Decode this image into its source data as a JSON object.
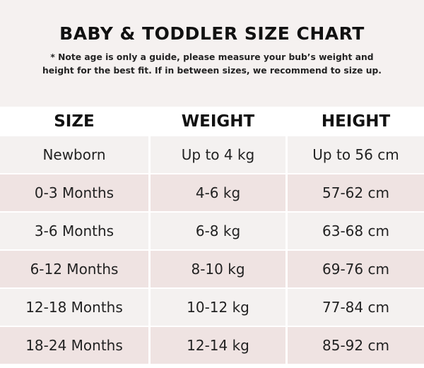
{
  "title": "BABY & TODDLER SIZE CHART",
  "note_line1": "* Note age is only a guide, please measure your bub’s weight and",
  "note_line2": "height for the best fit. If in between sizes, we recommend to size up.",
  "headers": [
    "SIZE",
    "WEIGHT",
    "HEIGHT"
  ],
  "rows": [
    [
      "Newborn",
      "Up to 4 kg",
      "Up to 56 cm"
    ],
    [
      "0-3 Months",
      "4-6 kg",
      "57-62 cm"
    ],
    [
      "3-6 Months",
      "6-8 kg",
      "63-68 cm"
    ],
    [
      "6-12 Months",
      "8-10 kg",
      "69-76 cm"
    ],
    [
      "12-18 Months",
      "10-12 kg",
      "77-84 cm"
    ],
    [
      "18-24 Months",
      "12-14 kg",
      "85-92 cm"
    ]
  ],
  "colors": {
    "header_bg": "#f5f1f0",
    "row_light": "#f4f1f0",
    "row_dark": "#efe3e2"
  }
}
